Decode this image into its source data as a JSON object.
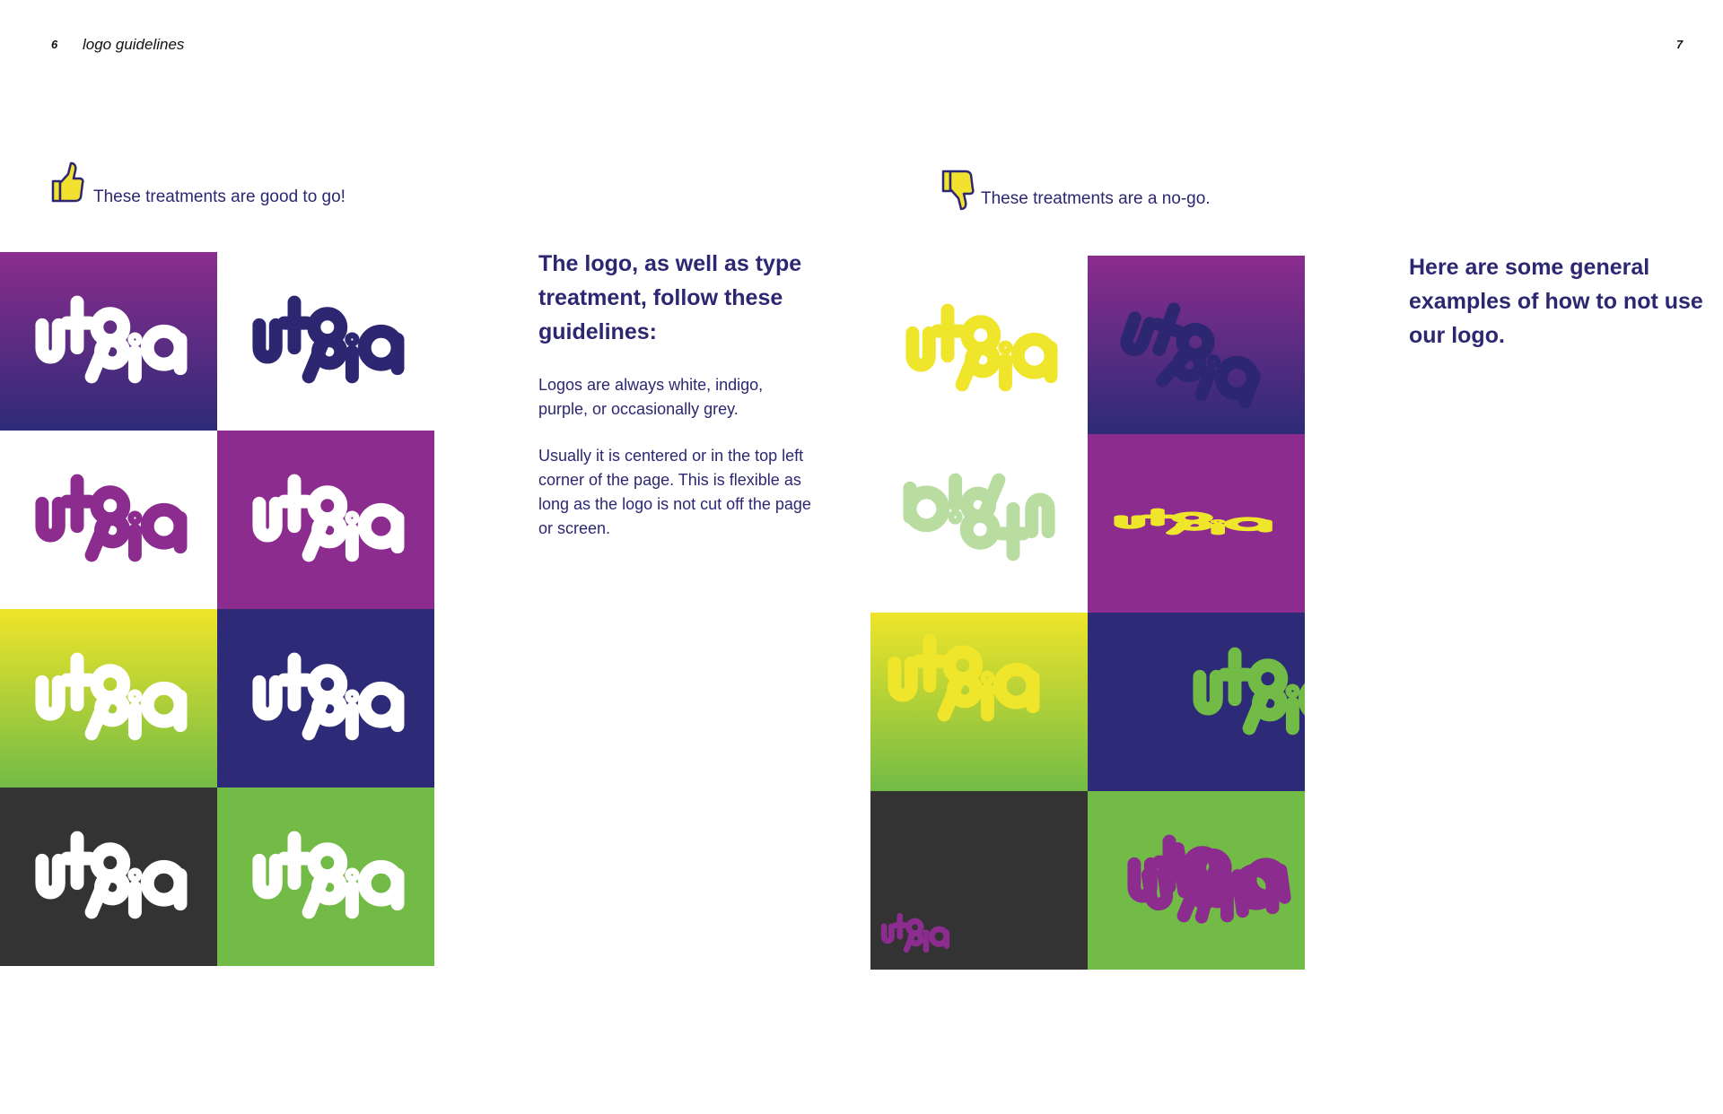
{
  "header": {
    "page_left": "6",
    "section_title": "logo guidelines",
    "page_right": "7"
  },
  "left_page": {
    "caption": "These treatments are good to go!",
    "caption_icon": "thumbs-up-icon",
    "heading": "The logo, as well as type treatment, follow these guidelines:",
    "paragraphs": [
      "Logos are always white, indigo, purple, or occasionally grey.",
      "Usually it is centered or in the top left corner of the page. This is flexible as long as the logo is not cut off the page or screen."
    ],
    "logo_word": "utopia",
    "tiles": [
      {
        "bg": "gradient-purple-indigo",
        "logo": "#ffffff"
      },
      {
        "bg": "#ffffff",
        "logo": "#2d2772"
      },
      {
        "bg": "#ffffff",
        "logo": "#8b2c8e"
      },
      {
        "bg": "#8b2c8e",
        "logo": "#ffffff"
      },
      {
        "bg": "gradient-yellow-green",
        "logo": "#ffffff"
      },
      {
        "bg": "#2d2b77",
        "logo": "#ffffff"
      },
      {
        "bg": "#333333",
        "logo": "#ffffff"
      },
      {
        "bg": "#72bb46",
        "logo": "#ffffff"
      }
    ]
  },
  "right_page": {
    "caption": "These treatments are a no-go.",
    "caption_icon": "thumbs-down-icon",
    "heading": "Here are some general examples of how to not use our logo.",
    "tiles": [
      {
        "bg": "#ffffff",
        "logo": "#efe52a",
        "issue": "wrong color"
      },
      {
        "bg": "gradient-purple-indigo",
        "logo": "#2d2772",
        "issue": "low contrast"
      },
      {
        "bg": "#ffffff",
        "logo": "#b9dca0",
        "issue": "rotated"
      },
      {
        "bg": "#8b2c8e",
        "logo": "#efe52a",
        "issue": "squished"
      },
      {
        "bg": "gradient-yellow-green",
        "logo": "#efe52a",
        "issue": "low contrast"
      },
      {
        "bg": "#2d2b77",
        "logo": "#72bb46",
        "issue": "cut off"
      },
      {
        "bg": "#333333",
        "logo": "#8b2c8e",
        "issue": "too small"
      },
      {
        "bg": "#72bb46",
        "logo": "#8b2c8e",
        "issue": "distorted overlap"
      }
    ]
  },
  "colors": {
    "indigo": "#2d2772",
    "purple": "#8b2c8e",
    "yellow": "#efe52a",
    "green": "#72bb46",
    "charcoal": "#333333"
  }
}
